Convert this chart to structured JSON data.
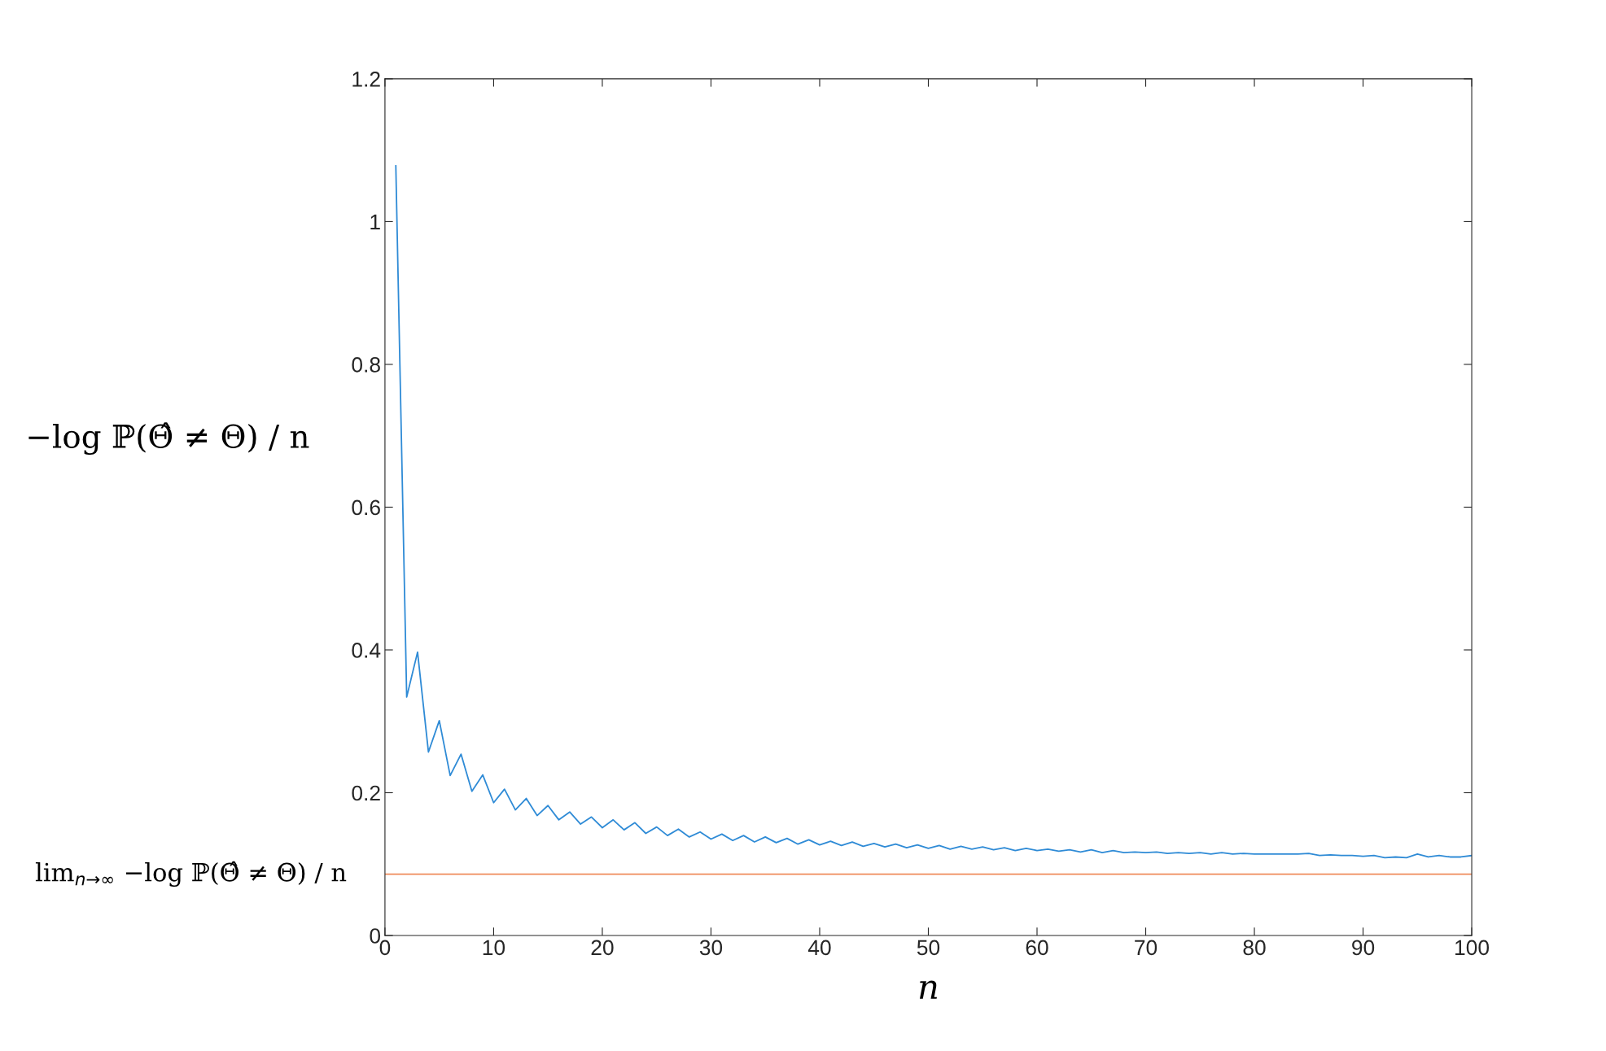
{
  "chart_data": {
    "type": "line",
    "xlabel": "n",
    "ylabel": "−log ℙ(Θ̂ ≠ Θ) / n",
    "x": [
      1,
      2,
      3,
      4,
      5,
      6,
      7,
      8,
      9,
      10,
      11,
      12,
      13,
      14,
      15,
      16,
      17,
      18,
      19,
      20,
      21,
      22,
      23,
      24,
      25,
      26,
      27,
      28,
      29,
      30,
      31,
      32,
      33,
      34,
      35,
      36,
      37,
      38,
      39,
      40,
      41,
      42,
      43,
      44,
      45,
      46,
      47,
      48,
      49,
      50,
      51,
      52,
      53,
      54,
      55,
      56,
      57,
      58,
      59,
      60,
      61,
      62,
      63,
      64,
      65,
      66,
      67,
      68,
      69,
      70,
      71,
      72,
      73,
      74,
      75,
      76,
      77,
      78,
      79,
      80,
      81,
      82,
      83,
      84,
      85,
      86,
      87,
      88,
      89,
      90,
      91,
      92,
      93,
      94,
      95,
      96,
      97,
      98,
      99,
      100
    ],
    "series": [
      {
        "color": "#2f8bd6",
        "values": [
          1.078,
          0.334,
          0.397,
          0.257,
          0.301,
          0.224,
          0.254,
          0.202,
          0.225,
          0.186,
          0.205,
          0.176,
          0.192,
          0.168,
          0.182,
          0.162,
          0.173,
          0.156,
          0.166,
          0.151,
          0.162,
          0.148,
          0.158,
          0.143,
          0.152,
          0.14,
          0.149,
          0.138,
          0.145,
          0.135,
          0.142,
          0.133,
          0.14,
          0.131,
          0.138,
          0.13,
          0.136,
          0.128,
          0.134,
          0.127,
          0.132,
          0.126,
          0.131,
          0.125,
          0.129,
          0.124,
          0.128,
          0.123,
          0.127,
          0.122,
          0.126,
          0.121,
          0.125,
          0.121,
          0.124,
          0.12,
          0.123,
          0.119,
          0.122,
          0.119,
          0.121,
          0.118,
          0.12,
          0.117,
          0.12,
          0.116,
          0.119,
          0.116,
          0.117,
          0.116,
          0.117,
          0.115,
          0.116,
          0.115,
          0.116,
          0.114,
          0.116,
          0.114,
          0.115,
          0.114,
          0.114,
          0.114,
          0.114,
          0.114,
          0.115,
          0.112,
          0.113,
          0.112,
          0.112,
          0.111,
          0.112,
          0.109,
          0.11,
          0.109,
          0.114,
          0.11,
          0.112,
          0.11,
          0.11,
          0.112
        ]
      }
    ],
    "ref_lines": [
      {
        "axis": "y",
        "value": 0.086,
        "label": "lim$_{n→∞}$ −log ℙ(Θ̂ ≠ Θ) / n",
        "color": "#ef8a5a"
      }
    ],
    "xlim": [
      0,
      100
    ],
    "ylim": [
      0,
      1.2
    ],
    "xticks": [
      0,
      10,
      20,
      30,
      40,
      50,
      60,
      70,
      80,
      90,
      100
    ],
    "yticks": [
      0,
      {
        "value": 0.2,
        "label": "0.2"
      },
      {
        "value": 0.4,
        "label": "0.4"
      },
      {
        "value": 0.6,
        "label": "0.6"
      },
      {
        "value": 0.8,
        "label": "0.8"
      },
      1,
      {
        "value": 1.2,
        "label": "1.2"
      }
    ],
    "grid": false,
    "legend": false,
    "marker": "none",
    "line_style": "solid"
  }
}
